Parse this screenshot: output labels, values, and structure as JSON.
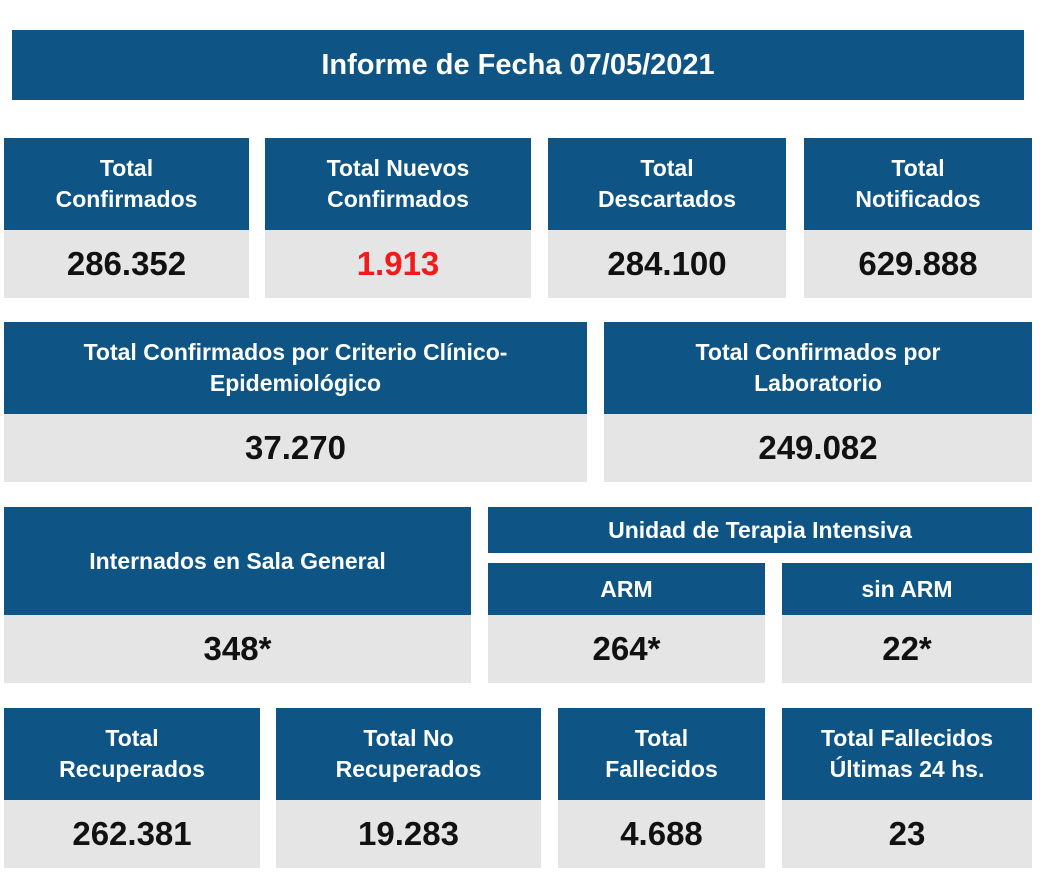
{
  "title": "Informe de Fecha 07/05/2021",
  "row1": [
    {
      "line1": "Total",
      "line2": "Confirmados",
      "value": "286.352"
    },
    {
      "line1": "Total Nuevos",
      "line2": "Confirmados",
      "value": "1.913"
    },
    {
      "line1": "Total",
      "line2": "Descartados",
      "value": "284.100"
    },
    {
      "line1": "Total",
      "line2": "Notificados",
      "value": "629.888"
    }
  ],
  "row2": [
    {
      "line1": "Total Confirmados por Criterio Clínico-",
      "line2": "Epidemiológico",
      "value": "37.270"
    },
    {
      "line1": "Total Confirmados por",
      "line2": "Laboratorio",
      "value": "249.082"
    }
  ],
  "row3": {
    "general": {
      "label": "Internados en Sala General",
      "value": "348*"
    },
    "uti_header": "Unidad de Terapia Intensiva",
    "arm": {
      "label": "ARM",
      "value": "264*"
    },
    "sin_arm": {
      "label": "sin ARM",
      "value": "22*"
    }
  },
  "row4": [
    {
      "line1": "Total",
      "line2": "Recuperados",
      "value": "262.381"
    },
    {
      "line1": "Total No",
      "line2": "Recuperados",
      "value": "19.283"
    },
    {
      "line1": "Total",
      "line2": "Fallecidos",
      "value": "4.688"
    },
    {
      "line1": "Total Fallecidos",
      "line2": "Últimas 24 hs.",
      "value": "23"
    }
  ],
  "colors": {
    "header_blue": "#0e5585",
    "value_bg": "#e5e5e5",
    "highlight_red": "#f21a1a"
  }
}
